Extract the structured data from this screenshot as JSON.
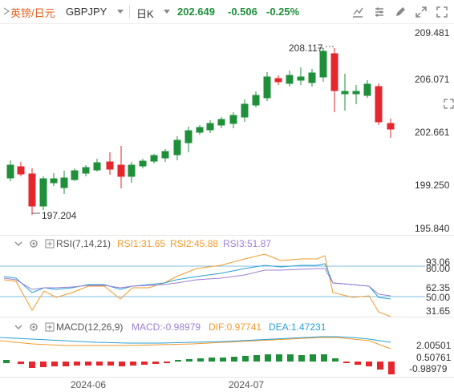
{
  "toolbar": {
    "name_cn": "英镑/日元",
    "symbol": "GBPJPY",
    "period": "日K",
    "last": "202.649",
    "change": "-0.506",
    "change_pct": "-0.25%",
    "icons": [
      "flag-icon",
      "settings-icon",
      "draw-icon",
      "fullscreen-icon",
      "fullscreen-icon",
      "close-icon"
    ]
  },
  "main_axis": [
    "209.481",
    "206.071",
    "202.661",
    "199.250",
    "195.840"
  ],
  "hi_label": "208.117",
  "lo_label": "197.204",
  "last_box": "202.649",
  "rsi": {
    "title": "RSI(7,14,21)",
    "rsi1": "RSI1:31.65",
    "rsi2": "RSI2:45.88",
    "rsi3": "RSI3:51.87",
    "axis": [
      "93.06",
      "80.00",
      "62.35",
      "50.00",
      "31.65"
    ]
  },
  "macd": {
    "title": "MACD(12,26,9)",
    "macd": "MACD:-0.98979",
    "dif": "DIF:0.97741",
    "dea": "DEA:1.47231",
    "axis": [
      "2.00501",
      "0.50761",
      "-0.98979"
    ]
  },
  "dates": [
    "2024-06",
    "2024-07"
  ],
  "colors": {
    "up": "#1f8f3a",
    "down": "#e5262c",
    "rsi1": "#f39a2b",
    "rsi2": "#2a9fd6",
    "rsi3": "#9b7fd4",
    "accent": "#e85c1a"
  }
}
